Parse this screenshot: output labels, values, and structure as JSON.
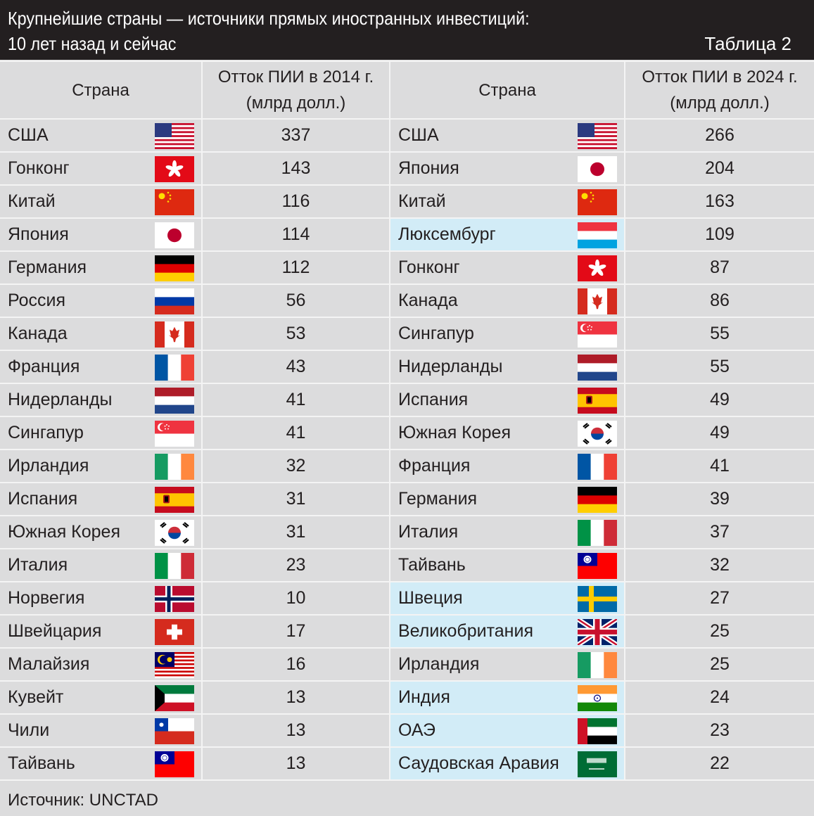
{
  "header": {
    "title_line1": "Крупнейшие страны — источники прямых иностранных инвестиций:",
    "title_line2": "10 лет назад и сейчас",
    "table_number": "Таблица 2"
  },
  "columns": {
    "country": "Страна",
    "outflow_2014": "Отток ПИИ в 2014 г.",
    "outflow_2024": "Отток ПИИ в 2024 г.",
    "unit": "(млрд долл.)"
  },
  "rows_2014": [
    {
      "country": "США",
      "flag": "us",
      "value": "337"
    },
    {
      "country": "Гонконг",
      "flag": "hk",
      "value": "143"
    },
    {
      "country": "Китай",
      "flag": "cn",
      "value": "116"
    },
    {
      "country": "Япония",
      "flag": "jp",
      "value": "114"
    },
    {
      "country": "Германия",
      "flag": "de",
      "value": "112"
    },
    {
      "country": "Россия",
      "flag": "ru",
      "value": "56"
    },
    {
      "country": "Канада",
      "flag": "ca",
      "value": "53"
    },
    {
      "country": "Франция",
      "flag": "fr",
      "value": "43"
    },
    {
      "country": "Нидерланды",
      "flag": "nl",
      "value": "41"
    },
    {
      "country": "Сингапур",
      "flag": "sg",
      "value": "41"
    },
    {
      "country": "Ирландия",
      "flag": "ie",
      "value": "32"
    },
    {
      "country": "Испания",
      "flag": "es",
      "value": "31"
    },
    {
      "country": "Южная Корея",
      "flag": "kr",
      "value": "31"
    },
    {
      "country": "Италия",
      "flag": "it",
      "value": "23"
    },
    {
      "country": "Норвегия",
      "flag": "no",
      "value": "10"
    },
    {
      "country": "Швейцария",
      "flag": "ch",
      "value": "17"
    },
    {
      "country": "Малайзия",
      "flag": "my",
      "value": "16"
    },
    {
      "country": "Кувейт",
      "flag": "kw",
      "value": "13"
    },
    {
      "country": "Чили",
      "flag": "cl",
      "value": "13"
    },
    {
      "country": "Тайвань",
      "flag": "tw",
      "value": "13"
    }
  ],
  "rows_2024": [
    {
      "country": "США",
      "flag": "us",
      "value": "266",
      "highlight": false
    },
    {
      "country": "Япония",
      "flag": "jp",
      "value": "204",
      "highlight": false
    },
    {
      "country": "Китай",
      "flag": "cn",
      "value": "163",
      "highlight": false
    },
    {
      "country": "Люксембург",
      "flag": "lu",
      "value": "109",
      "highlight": true
    },
    {
      "country": "Гонконг",
      "flag": "hk",
      "value": "87",
      "highlight": false
    },
    {
      "country": "Канада",
      "flag": "ca",
      "value": "86",
      "highlight": false
    },
    {
      "country": "Сингапур",
      "flag": "sg",
      "value": "55",
      "highlight": false
    },
    {
      "country": "Нидерланды",
      "flag": "nl",
      "value": "55",
      "highlight": false
    },
    {
      "country": "Испания",
      "flag": "es",
      "value": "49",
      "highlight": false
    },
    {
      "country": "Южная Корея",
      "flag": "kr",
      "value": "49",
      "highlight": false
    },
    {
      "country": "Франция",
      "flag": "fr",
      "value": "41",
      "highlight": false
    },
    {
      "country": "Германия",
      "flag": "de",
      "value": "39",
      "highlight": false
    },
    {
      "country": "Италия",
      "flag": "it",
      "value": "37",
      "highlight": false
    },
    {
      "country": "Тайвань",
      "flag": "tw",
      "value": "32",
      "highlight": false
    },
    {
      "country": "Швеция",
      "flag": "se",
      "value": "27",
      "highlight": true
    },
    {
      "country": "Великобритания",
      "flag": "gb",
      "value": "25",
      "highlight": true
    },
    {
      "country": "Ирландия",
      "flag": "ie",
      "value": "25",
      "highlight": false
    },
    {
      "country": "Индия",
      "flag": "in",
      "value": "24",
      "highlight": true
    },
    {
      "country": "ОАЭ",
      "flag": "ae",
      "value": "23",
      "highlight": true
    },
    {
      "country": "Саудовская Аравия",
      "flag": "sa",
      "value": "22",
      "highlight": true
    }
  ],
  "colors": {
    "title_bar": "#231f20",
    "table_bg": "#dcdcdd",
    "highlight": "#d2ecf7"
  },
  "footer": {
    "source": "Источник: UNCTAD"
  }
}
